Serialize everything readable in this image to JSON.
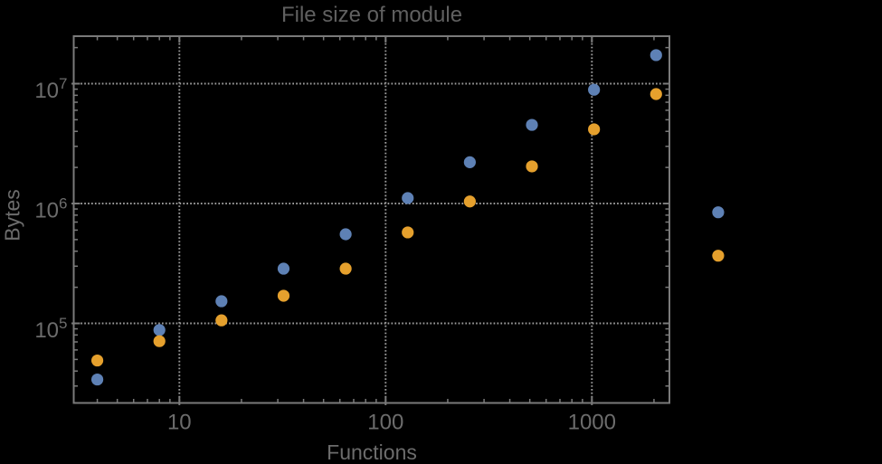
{
  "page": {
    "background": "#000000"
  },
  "chart": {
    "title": "File size of module",
    "xlabel": "Functions",
    "ylabel": "Bytes",
    "styles": {
      "frame_color": "#7a7a7a",
      "grid_color": "#9b9b9b",
      "tick_label_color": "#6c6c6c",
      "axis_label_color": "#6c6c6c",
      "title_color": "#606060",
      "series_blue": "#5E81B5",
      "series_orange": "#E5A02D"
    }
  },
  "chart_data": {
    "type": "scatter",
    "title": "File size of module",
    "xlabel": "Functions",
    "ylabel": "Bytes",
    "x_scale": "log",
    "y_scale": "log",
    "xlim": [
      3.1,
      2340
    ],
    "ylim": [
      21500,
      24600000
    ],
    "grid": "dotted gray lines at decade ticks, frame on all four sides with inward log minor ticks",
    "legend": "none",
    "x_ticks": [
      {
        "value": 10,
        "label": "10"
      },
      {
        "value": 100,
        "label": "100"
      },
      {
        "value": 1000,
        "label": "1000"
      }
    ],
    "y_ticks": [
      {
        "value": 100000,
        "base": "10",
        "exp": "5"
      },
      {
        "value": 1000000,
        "base": "10",
        "exp": "6"
      },
      {
        "value": 10000000,
        "base": "10",
        "exp": "7"
      }
    ],
    "x": [
      4,
      8,
      16,
      32,
      64,
      128,
      256,
      512,
      1024,
      2048,
      4096
    ],
    "series": [
      {
        "name": "series-1",
        "color": "#5E81B5",
        "values": [
          34000,
          88000,
          153000,
          286000,
          554000,
          1110000,
          2210000,
          4530000,
          8900000,
          17300000,
          845000
        ]
      },
      {
        "name": "series-2",
        "color": "#E5A02D",
        "values": [
          49000,
          71000,
          106000,
          170000,
          286000,
          574000,
          1040000,
          2040000,
          4160000,
          8190000,
          367000
        ]
      }
    ],
    "note": "last pair of points (x=4096) lies beyond the right frame edge (unclipped)"
  }
}
